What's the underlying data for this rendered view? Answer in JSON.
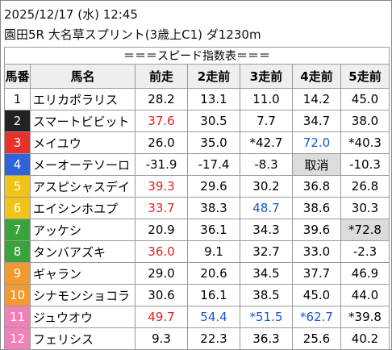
{
  "header": {
    "datetime": "2025/12/17 (水) 12:45",
    "race": "園田5R 大名草スプリント(3歳上C1) ダ1230m"
  },
  "table": {
    "title": "＝＝＝スピード指数表＝＝＝",
    "columns": [
      "馬番",
      "馬名",
      "前走",
      "2走前",
      "3走前",
      "4走前",
      "5走前"
    ],
    "rows": [
      [
        "1",
        "エリカポラリス",
        "28.2",
        "13.1",
        "11.0",
        "14.2",
        "45.0"
      ],
      [
        "2",
        "スマートビビット",
        "37.6",
        "30.5",
        "7.7",
        "34.7",
        "38.0"
      ],
      [
        "3",
        "メイユウ",
        "26.0",
        "35.0",
        "*42.7",
        "72.0",
        "*40.3"
      ],
      [
        "4",
        "メーオーテソーロ",
        "-31.9",
        "-17.4",
        "-8.3",
        "取消",
        "-10.3"
      ],
      [
        "5",
        "アスピシャスデイ",
        "39.3",
        "29.6",
        "30.2",
        "36.8",
        "26.8"
      ],
      [
        "6",
        "エイシンホユプ",
        "33.7",
        "38.3",
        "48.7",
        "38.6",
        "30.3"
      ],
      [
        "7",
        "アッケシ",
        "20.9",
        "36.1",
        "34.3",
        "39.6",
        "*72.8"
      ],
      [
        "8",
        "タンバアズキ",
        "36.0",
        "9.1",
        "32.7",
        "33.0",
        "-2.3"
      ],
      [
        "9",
        "ギャラン",
        "29.0",
        "20.6",
        "34.5",
        "37.7",
        "46.9"
      ],
      [
        "10",
        "シナモンショコラ",
        "30.6",
        "16.1",
        "38.5",
        "45.0",
        "44.0"
      ],
      [
        "11",
        "ジュウオウ",
        "49.7",
        "54.4",
        "*51.5",
        "*62.7",
        "*39.8"
      ],
      [
        "12",
        "フェリシス",
        "9.3",
        "22.3",
        "36.3",
        "25.6",
        "40.2"
      ]
    ]
  }
}
